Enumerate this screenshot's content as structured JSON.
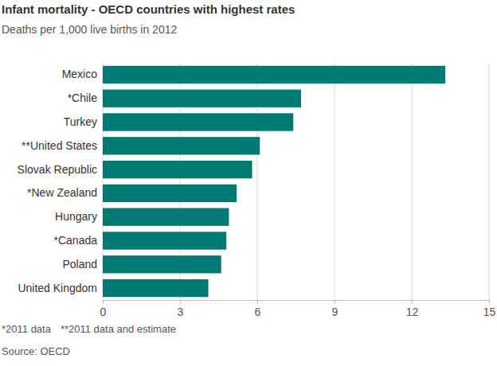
{
  "chart_data": {
    "type": "bar",
    "orientation": "horizontal",
    "title": "Infant mortality - OECD countries with highest rates",
    "subtitle": "Deaths per 1,000 live births in 2012",
    "categories": [
      "Mexico",
      "*Chile",
      "Turkey",
      "**United States",
      "Slovak Republic",
      "*New Zealand",
      "Hungary",
      "*Canada",
      "Poland",
      "United Kingdom"
    ],
    "values": [
      13.3,
      7.7,
      7.4,
      6.1,
      5.8,
      5.2,
      4.9,
      4.8,
      4.6,
      4.1
    ],
    "color": "#007b73",
    "xlim": [
      0,
      15
    ],
    "xticks": [
      0,
      3,
      6,
      9,
      12,
      15
    ],
    "grid": true,
    "footnotes": [
      "*2011 data",
      "**2011 data and estimate"
    ],
    "source": "Source: OECD"
  }
}
